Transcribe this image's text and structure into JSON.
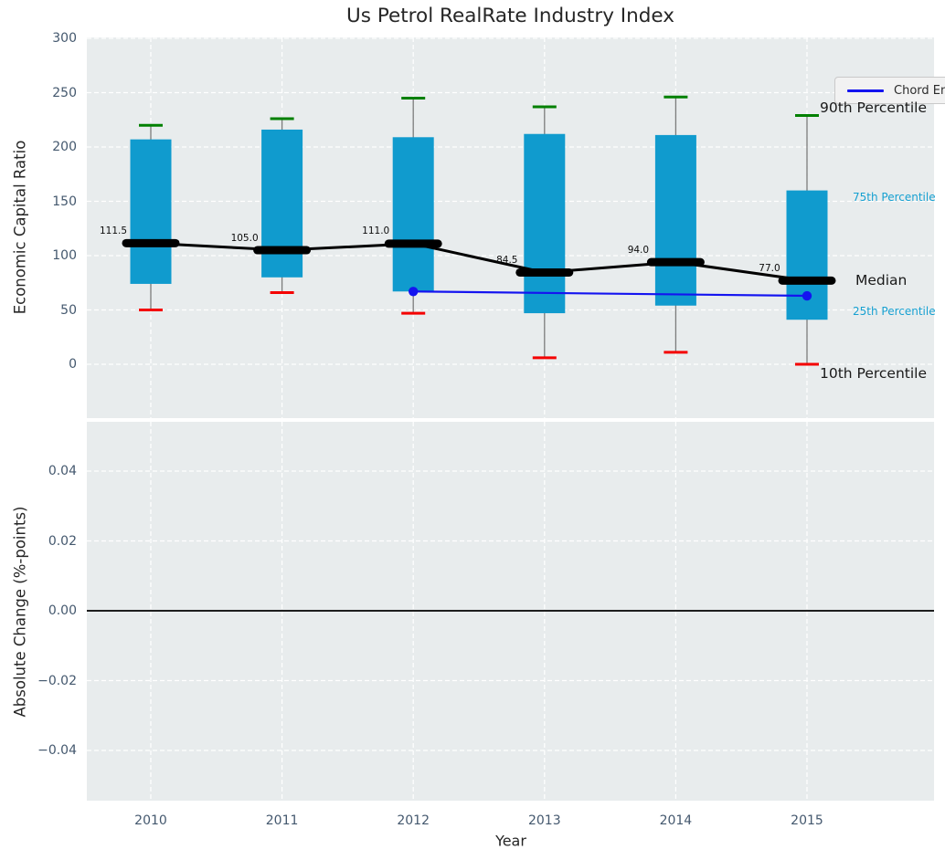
{
  "title": "Us Petrol RealRate Industry Index",
  "legend": {
    "label": "Chord Energy Corp"
  },
  "colors": {
    "box_fill": "#109bce",
    "whisker": "#7b7b7b",
    "p90_cap_green": "#008000",
    "p10_cap_red": "#f40000",
    "median_black": "#000000",
    "company_line_blue": "#1414f0",
    "axes_background": "#e8eced",
    "grid_white": "#ffffff",
    "tick_label": "#44586e",
    "text_dark": "#262626",
    "cyan_annotation": "#16a0d1",
    "zero_line": "#000000"
  },
  "chart_data": [
    {
      "type": "box",
      "title": "Us Petrol RealRate Industry Index",
      "ylabel": "Economic Capital Ratio",
      "ylim": [
        -50,
        302
      ],
      "yticks": [
        0,
        50,
        100,
        150,
        200,
        250,
        300
      ],
      "grid": "both, white dashed",
      "categories": [
        2010,
        2011,
        2012,
        2013,
        2014,
        2015
      ],
      "boxes": [
        {
          "year": 2010,
          "p10": 50,
          "p25": 74,
          "median": 111.5,
          "p75": 207,
          "p90": 220
        },
        {
          "year": 2011,
          "p10": 66,
          "p25": 80,
          "median": 105.0,
          "p75": 216,
          "p90": 226
        },
        {
          "year": 2012,
          "p10": 47,
          "p25": 67,
          "median": 111.0,
          "p75": 209,
          "p90": 245
        },
        {
          "year": 2013,
          "p10": 6,
          "p25": 47,
          "median": 84.5,
          "p75": 212,
          "p90": 237
        },
        {
          "year": 2014,
          "p10": 11,
          "p25": 54,
          "median": 94.0,
          "p75": 211,
          "p90": 246
        },
        {
          "year": 2015,
          "p10": 0,
          "p25": 41,
          "median": 77.0,
          "p75": 160,
          "p90": 229
        }
      ],
      "median_labels": [
        "111.5",
        "105.0",
        "111.0",
        "84.5",
        "94.0",
        "77.0"
      ],
      "series": [
        {
          "name": "Chord Energy Corp",
          "x": [
            2012,
            2015
          ],
          "y": [
            67,
            63
          ]
        }
      ],
      "annotations": [
        {
          "text": "90th Percentile",
          "level": 236,
          "style": "large"
        },
        {
          "text": "75th Percentile",
          "level": 154,
          "style": "small"
        },
        {
          "text": "Median",
          "level": 77,
          "style": "large"
        },
        {
          "text": "25th Percentile",
          "level": 49,
          "style": "small"
        },
        {
          "text": "10th Percentile",
          "level": -8,
          "style": "large"
        }
      ],
      "legend_position": "upper right"
    },
    {
      "type": "line",
      "ylabel": "Absolute Change (%-points)",
      "xlabel": "Year",
      "ylim": [
        -0.0545,
        0.0545
      ],
      "yticks": [
        "0.04",
        "0.02",
        "0.00",
        "−0.02",
        "−0.04"
      ],
      "ytick_values": [
        0.04,
        0.02,
        0.0,
        -0.02,
        -0.04
      ],
      "xticks": [
        "2010",
        "2011",
        "2012",
        "2013",
        "2014",
        "2015"
      ],
      "xtick_values": [
        2010,
        2011,
        2012,
        2013,
        2014,
        2015
      ],
      "zero_line": 0.0,
      "series": []
    }
  ]
}
